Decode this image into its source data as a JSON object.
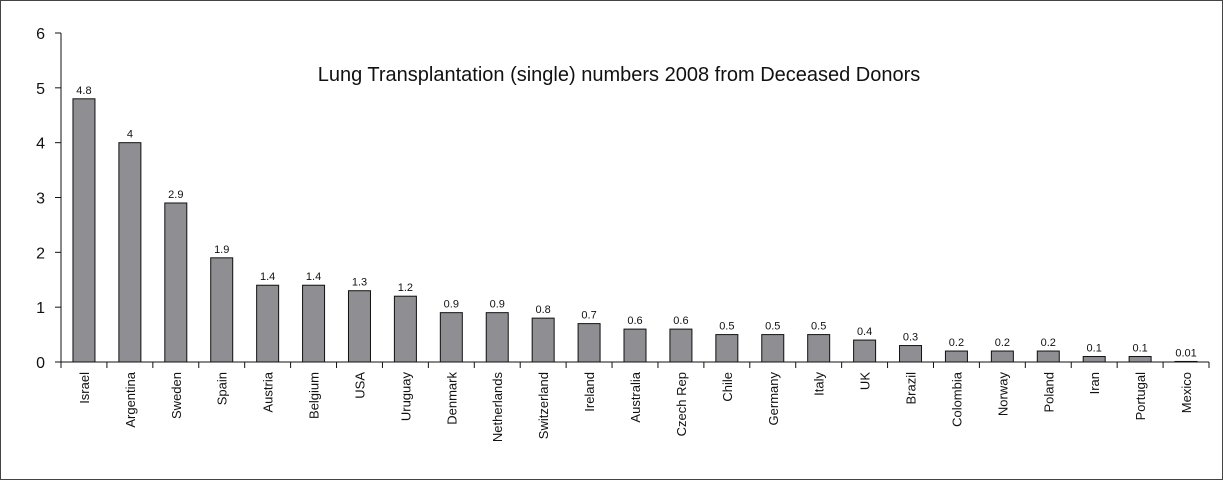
{
  "chart_data": {
    "type": "bar",
    "title": "Lung Transplantation (single) numbers 2008 from Deceased Donors",
    "xlabel": "",
    "ylabel": "",
    "ylim": [
      0,
      6
    ],
    "yticks": [
      "0",
      "1",
      "2",
      "3",
      "4",
      "5",
      "6"
    ],
    "grid": false,
    "categories": [
      "Israel",
      "Argentina",
      "Sweden",
      "Spain",
      "Austria",
      "Belgium",
      "USA",
      "Uruguay",
      "Denmark",
      "Netherlands",
      "Switzerland",
      "Ireland",
      "Australia",
      "Czech Rep",
      "Chile",
      "Germany",
      "Italy",
      "UK",
      "Brazil",
      "Colombia",
      "Norway",
      "Poland",
      "Iran",
      "Portugal",
      "Mexico"
    ],
    "values": [
      4.8,
      4,
      2.9,
      1.9,
      1.4,
      1.4,
      1.3,
      1.2,
      0.9,
      0.9,
      0.8,
      0.7,
      0.6,
      0.6,
      0.5,
      0.5,
      0.5,
      0.4,
      0.3,
      0.2,
      0.2,
      0.2,
      0.1,
      0.1,
      0.01
    ],
    "data_labels": [
      "4.8",
      "4",
      "2.9",
      "1.9",
      "1.4",
      "1.4",
      "1.3",
      "1.2",
      "0.9",
      "0.9",
      "0.8",
      "0.7",
      "0.6",
      "0.6",
      "0.5",
      "0.5",
      "0.5",
      "0.4",
      "0.3",
      "0.2",
      "0.2",
      "0.2",
      "0.1",
      "0.1",
      "0.01"
    ],
    "colors": {
      "bar_fill": "#8e8e93",
      "bar_stroke": "#111111",
      "axis": "#111111"
    }
  }
}
